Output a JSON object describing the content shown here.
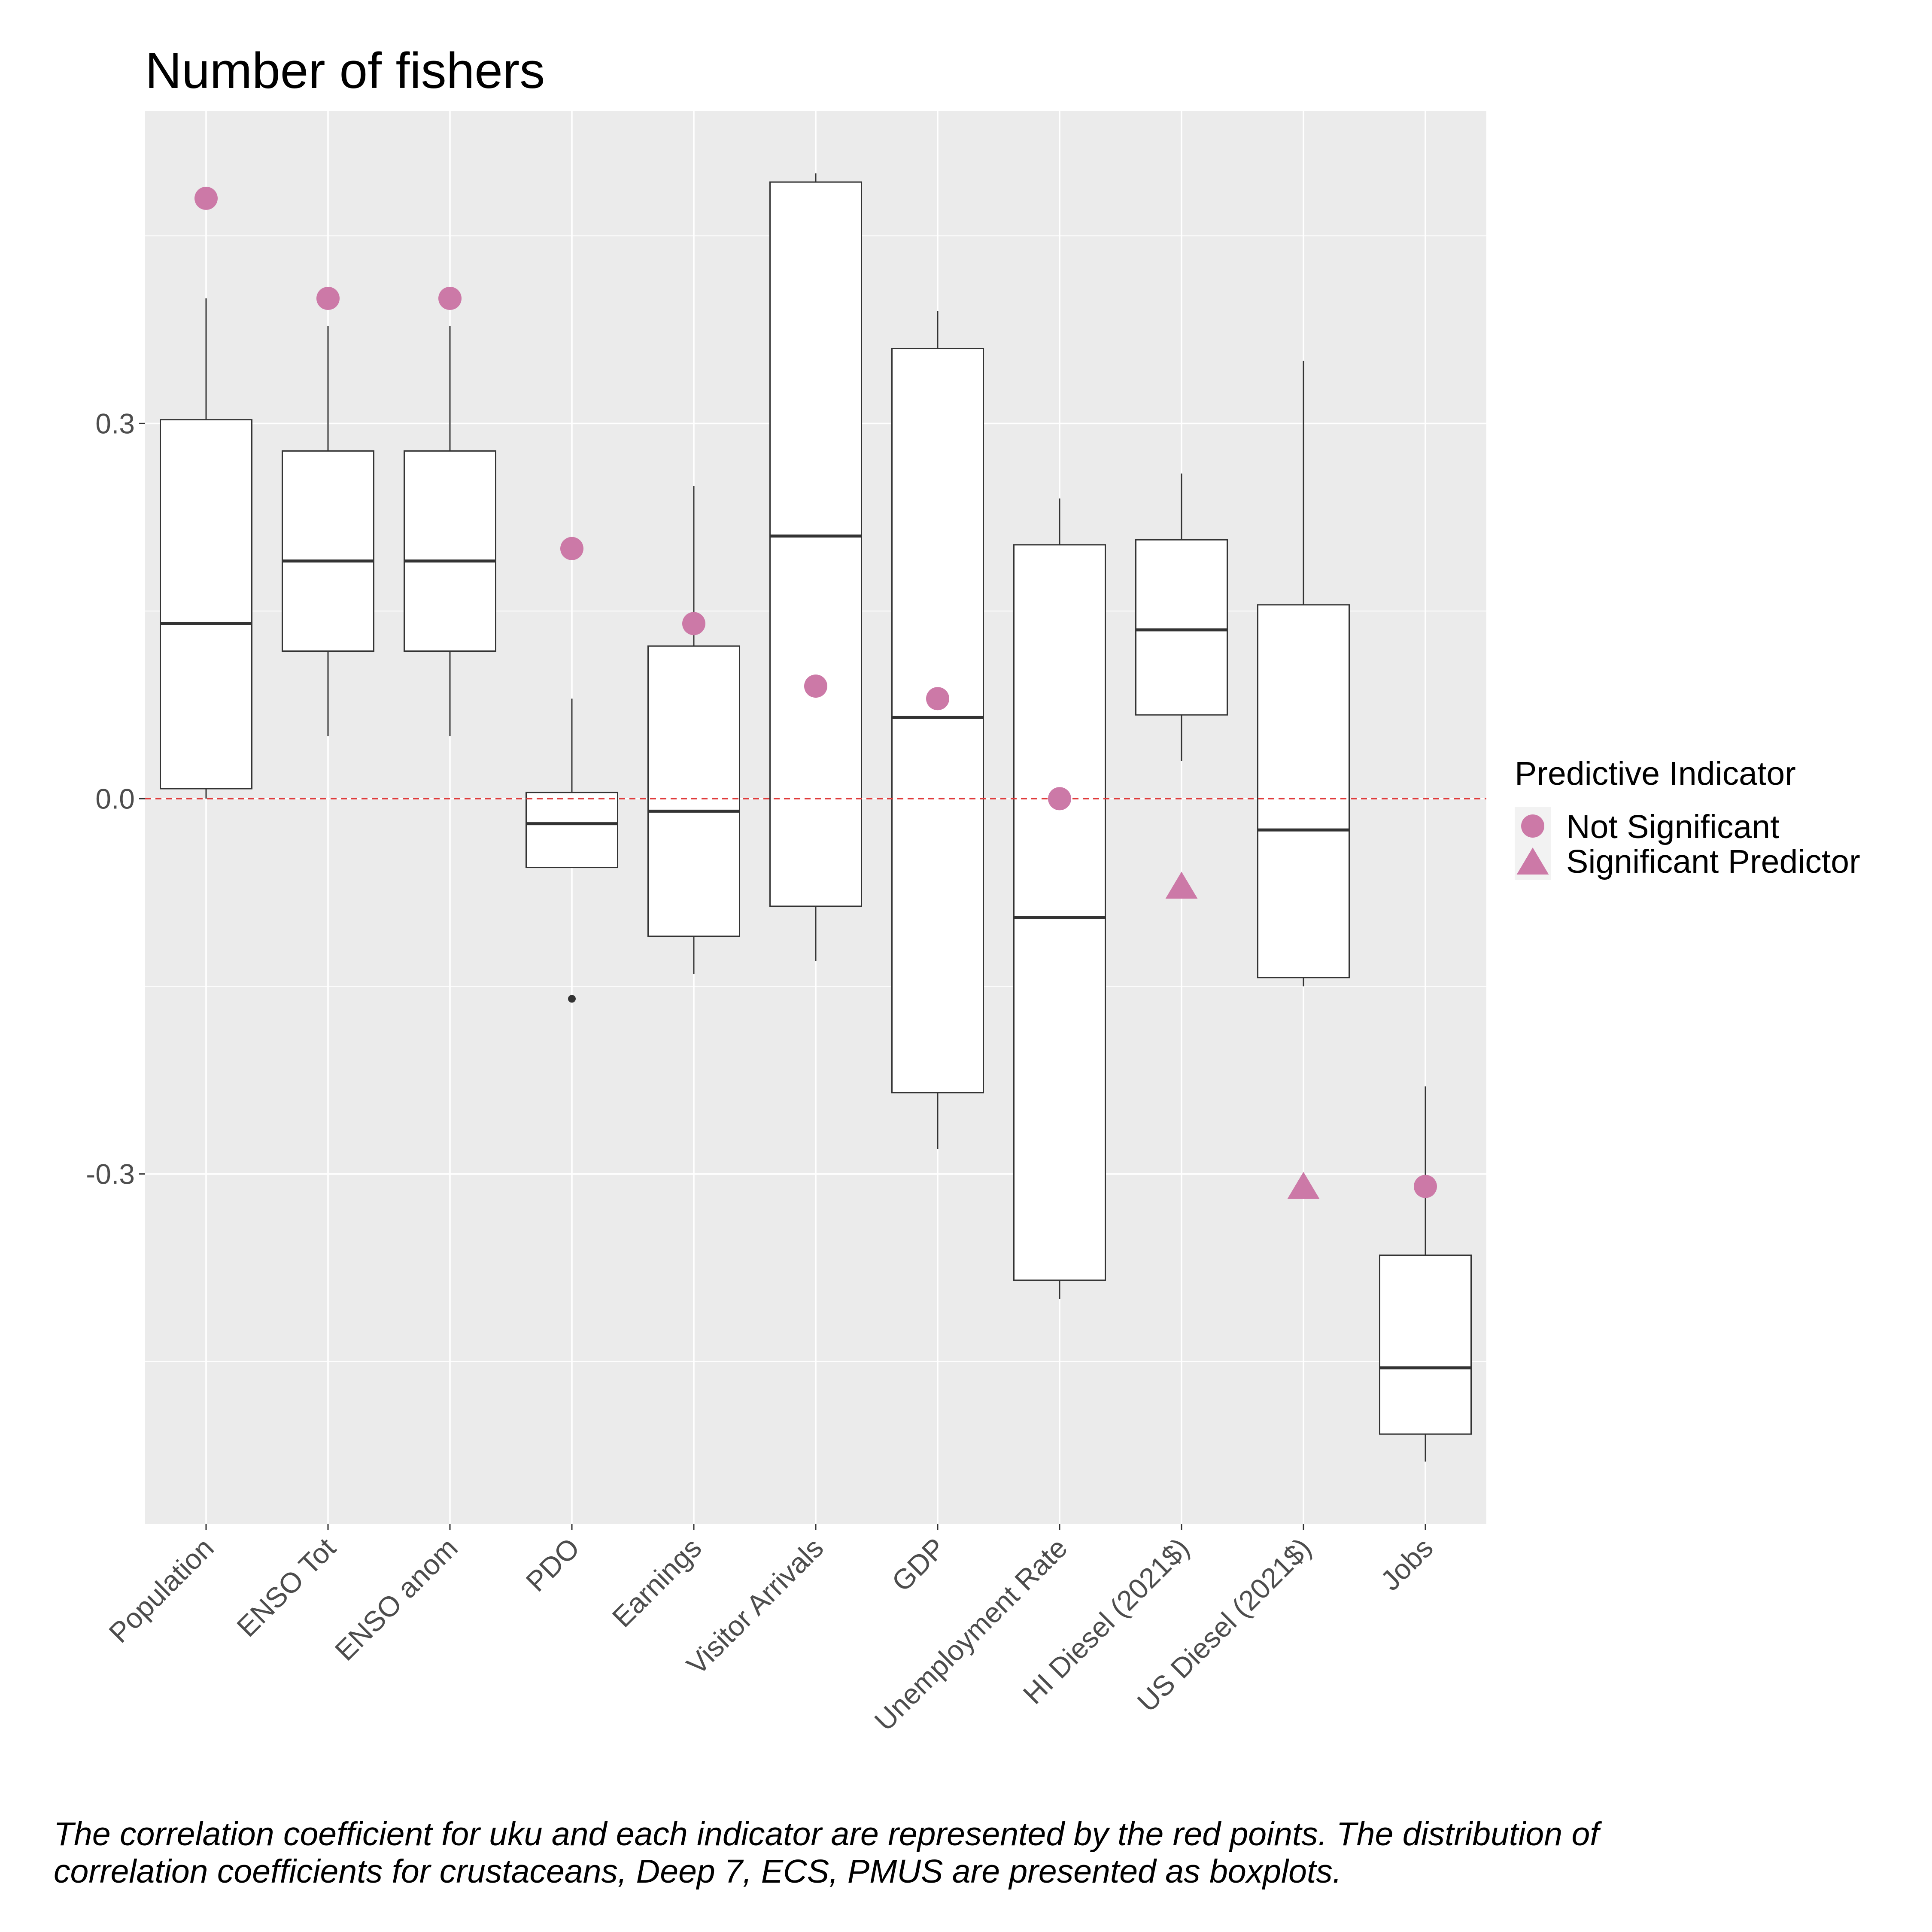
{
  "chart_data": {
    "type": "box",
    "title": "Number of fishers",
    "xlabel": "",
    "ylabel": "",
    "ylim": [
      -0.58,
      0.55
    ],
    "yticks": [
      -0.3,
      0.0,
      0.3
    ],
    "ytick_labels": [
      "-0.3",
      "0.0",
      "0.3"
    ],
    "grid": true,
    "reference_line": {
      "y": 0.0,
      "style": "dashed",
      "color": "#e03a3a"
    },
    "categories": [
      "Population",
      "ENSO Tot",
      "ENSO anom",
      "PDO",
      "Earnings",
      "Visitor Arrivals",
      "GDP",
      "Unemployment Rate",
      "HI Diesel (2021$)",
      "US Diesel (2021$)",
      "Jobs"
    ],
    "boxes": [
      {
        "category": "Population",
        "whisker_low": 0.0,
        "q1": 0.008,
        "median": 0.14,
        "q3": 0.303,
        "whisker_high": 0.4,
        "outliers": []
      },
      {
        "category": "ENSO Tot",
        "whisker_low": 0.05,
        "q1": 0.118,
        "median": 0.19,
        "q3": 0.278,
        "whisker_high": 0.378,
        "outliers": []
      },
      {
        "category": "ENSO anom",
        "whisker_low": 0.05,
        "q1": 0.118,
        "median": 0.19,
        "q3": 0.278,
        "whisker_high": 0.378,
        "outliers": []
      },
      {
        "category": "PDO",
        "whisker_low": -0.055,
        "q1": -0.055,
        "median": -0.02,
        "q3": 0.005,
        "whisker_high": 0.08,
        "outliers": [
          -0.16
        ]
      },
      {
        "category": "Earnings",
        "whisker_low": -0.14,
        "q1": -0.11,
        "median": -0.01,
        "q3": 0.122,
        "whisker_high": 0.25,
        "outliers": []
      },
      {
        "category": "Visitor Arrivals",
        "whisker_low": -0.13,
        "q1": -0.086,
        "median": 0.21,
        "q3": 0.493,
        "whisker_high": 0.5,
        "outliers": []
      },
      {
        "category": "GDP",
        "whisker_low": -0.28,
        "q1": -0.235,
        "median": 0.065,
        "q3": 0.36,
        "whisker_high": 0.39,
        "outliers": []
      },
      {
        "category": "Unemployment Rate",
        "whisker_low": -0.4,
        "q1": -0.385,
        "median": -0.095,
        "q3": 0.203,
        "whisker_high": 0.24,
        "outliers": []
      },
      {
        "category": "HI Diesel (2021$)",
        "whisker_low": 0.03,
        "q1": 0.067,
        "median": 0.135,
        "q3": 0.207,
        "whisker_high": 0.26,
        "outliers": []
      },
      {
        "category": "US Diesel (2021$)",
        "whisker_low": -0.15,
        "q1": -0.143,
        "median": -0.025,
        "q3": 0.155,
        "whisker_high": 0.35,
        "outliers": []
      },
      {
        "category": "Jobs",
        "whisker_low": -0.53,
        "q1": -0.508,
        "median": -0.455,
        "q3": -0.365,
        "whisker_high": -0.23,
        "outliers": []
      }
    ],
    "series": [
      {
        "name": "Not Significant",
        "marker": "circle",
        "color": "#cc79a7",
        "points": [
          {
            "x": "Population",
            "y": 0.48
          },
          {
            "x": "ENSO Tot",
            "y": 0.4
          },
          {
            "x": "ENSO anom",
            "y": 0.4
          },
          {
            "x": "PDO",
            "y": 0.2
          },
          {
            "x": "Earnings",
            "y": 0.14
          },
          {
            "x": "Visitor Arrivals",
            "y": 0.09
          },
          {
            "x": "GDP",
            "y": 0.08
          },
          {
            "x": "Unemployment Rate",
            "y": 0.0
          },
          {
            "x": "Jobs",
            "y": -0.31
          }
        ]
      },
      {
        "name": "Significant Predictor",
        "marker": "triangle",
        "color": "#cc79a7",
        "points": [
          {
            "x": "HI Diesel (2021$)",
            "y": -0.07
          },
          {
            "x": "US Diesel (2021$)",
            "y": -0.31
          }
        ]
      }
    ],
    "legend": {
      "title": "Predictive Indicator",
      "placement": "right"
    },
    "caption": {
      "line1": "The correlation coefficient for uku and each indicator are represented by the red points. The distribution of",
      "line2": " correlation coefficients for crustaceans, Deep 7, ECS, PMUS are presented as boxplots."
    },
    "colors": {
      "panel": "#ebebeb",
      "grid": "#ffffff",
      "box_fill": "#ffffff",
      "box_line": "#333333",
      "point": "#cc79a7",
      "zero_line": "#e03a3a"
    }
  }
}
